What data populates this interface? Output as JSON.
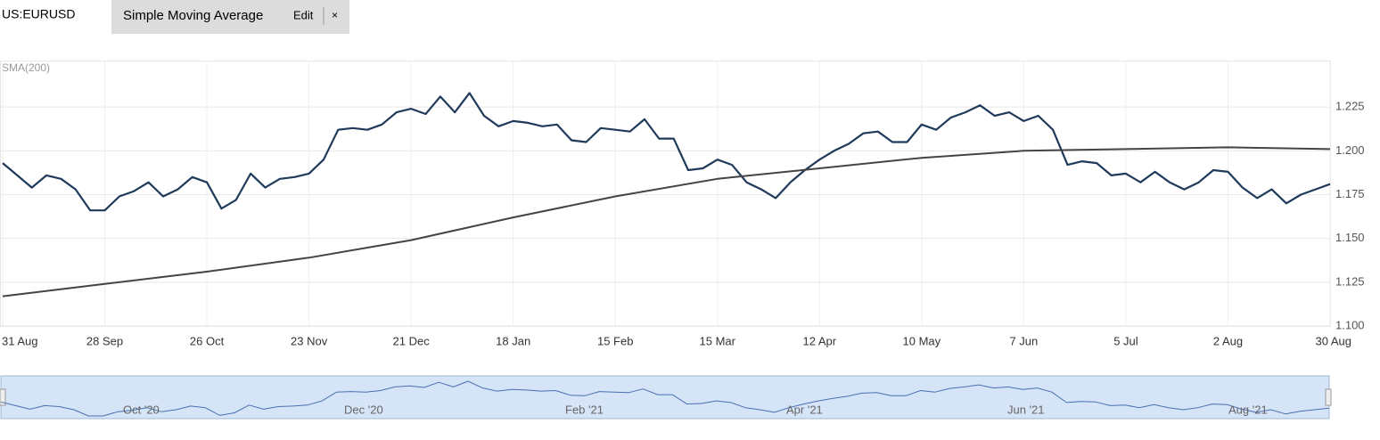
{
  "ui": {
    "tab_title": "Simple Moving Average",
    "edit": "Edit",
    "close": "×"
  },
  "chart_data": {
    "type": "line",
    "x": [
      0,
      4,
      8,
      12,
      16,
      20,
      24,
      28,
      32,
      36,
      40,
      44,
      48,
      52,
      56,
      60,
      64,
      68,
      72,
      76,
      80,
      84,
      88,
      92,
      96,
      100,
      104,
      108,
      112,
      116,
      120,
      124,
      128,
      132,
      136,
      140,
      144,
      148,
      152,
      156,
      160,
      164,
      168,
      172,
      176,
      180,
      184,
      188,
      192,
      196,
      200,
      204,
      208,
      212,
      216,
      220,
      224,
      228,
      232,
      236,
      240,
      244,
      248,
      252,
      256,
      260,
      264,
      268,
      272,
      276,
      280,
      284,
      288,
      292,
      296,
      300,
      304,
      308,
      312,
      316,
      320,
      324,
      328,
      332,
      336,
      340,
      344,
      348,
      352,
      356,
      360,
      364
    ],
    "series": [
      {
        "name": "US:EURUSD",
        "color": "#1f3a5a",
        "values": [
          1.193,
          1.186,
          1.179,
          1.186,
          1.184,
          1.178,
          1.166,
          1.166,
          1.174,
          1.177,
          1.182,
          1.174,
          1.178,
          1.185,
          1.182,
          1.167,
          1.172,
          1.187,
          1.179,
          1.184,
          1.185,
          1.187,
          1.195,
          1.212,
          1.213,
          1.212,
          1.215,
          1.222,
          1.224,
          1.221,
          1.231,
          1.222,
          1.233,
          1.22,
          1.214,
          1.217,
          1.216,
          1.214,
          1.215,
          1.206,
          1.205,
          1.213,
          1.212,
          1.211,
          1.218,
          1.207,
          1.207,
          1.189,
          1.19,
          1.195,
          1.192,
          1.182,
          1.178,
          1.173,
          1.182,
          1.189,
          1.195,
          1.2,
          1.204,
          1.21,
          1.211,
          1.205,
          1.205,
          1.215,
          1.212,
          1.219,
          1.222,
          1.226,
          1.22,
          1.222,
          1.217,
          1.22,
          1.212,
          1.192,
          1.194,
          1.193,
          1.186,
          1.187,
          1.182,
          1.188,
          1.182,
          1.178,
          1.182,
          1.189,
          1.188,
          1.179,
          1.173,
          1.178,
          1.17,
          1.175,
          1.178,
          1.181
        ]
      },
      {
        "name": "SMA(200)",
        "color": "#444444",
        "x": [
          0,
          28,
          56,
          84,
          112,
          140,
          168,
          196,
          224,
          252,
          280,
          308,
          336,
          364
        ],
        "values": [
          1.117,
          1.124,
          1.131,
          1.139,
          1.149,
          1.162,
          1.174,
          1.184,
          1.19,
          1.196,
          1.2,
          1.201,
          1.202,
          1.201
        ]
      }
    ],
    "xlim": [
      0,
      364
    ],
    "xticks": [
      {
        "value": 0,
        "label": "31 Aug"
      },
      {
        "value": 28,
        "label": "28 Sep"
      },
      {
        "value": 56,
        "label": "26 Oct"
      },
      {
        "value": 84,
        "label": "23 Nov"
      },
      {
        "value": 112,
        "label": "21 Dec"
      },
      {
        "value": 140,
        "label": "18 Jan"
      },
      {
        "value": 168,
        "label": "15 Feb"
      },
      {
        "value": 196,
        "label": "15 Mar"
      },
      {
        "value": 224,
        "label": "12 Apr"
      },
      {
        "value": 252,
        "label": "10 May"
      },
      {
        "value": 280,
        "label": "7 Jun"
      },
      {
        "value": 308,
        "label": "5 Jul"
      },
      {
        "value": 336,
        "label": "2 Aug"
      },
      {
        "value": 364,
        "label": "30 Aug"
      }
    ],
    "ylim": [
      1.1,
      1.25
    ],
    "yticks": [
      {
        "value": 1.1,
        "label": "1.100"
      },
      1.125,
      {
        "value": 1.15,
        "label": "1.150"
      },
      1.175,
      {
        "value": 1.2,
        "label": "1.200"
      },
      1.225
    ],
    "grid": true,
    "navigator_labels": [
      "Oct '20",
      "Dec '20",
      "Feb '21",
      "Apr '21",
      "Jun '21",
      "Aug '21"
    ]
  }
}
